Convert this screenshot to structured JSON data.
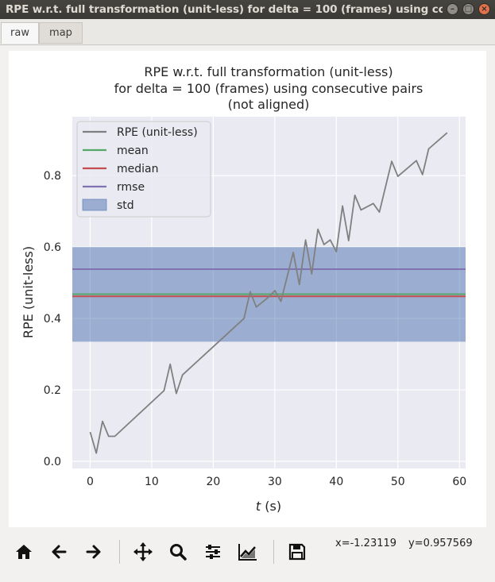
{
  "window": {
    "title": "RPE w.r.t. full transformation (unit-less) for delta = 100 (frames) using cons...",
    "buttons": [
      "minimize",
      "maximize",
      "close"
    ]
  },
  "tabs": [
    {
      "label": "raw",
      "active": true
    },
    {
      "label": "map",
      "active": false
    }
  ],
  "toolbar": {
    "buttons": [
      "home-icon",
      "back-arrow-icon",
      "forward-arrow-icon",
      "pan-icon",
      "zoom-icon",
      "configure-subplots-icon",
      "edit-axes-icon",
      "save-icon"
    ],
    "coord_x": "x=-1.23119",
    "coord_y": "y=0.957569"
  },
  "chart_data": {
    "type": "line",
    "title_lines": [
      "RPE w.r.t. full transformation (unit-less)",
      "for delta = 100 (frames) using consecutive pairs",
      "(not aligned)"
    ],
    "xlabel_italic": "t",
    "xlabel_rest": " (s)",
    "ylabel": "RPE (unit-less)",
    "xlim": [
      -2.9,
      61
    ],
    "ylim": [
      -0.02,
      0.965
    ],
    "xticks": [
      0,
      10,
      20,
      30,
      40,
      50,
      60
    ],
    "yticks": [
      0.0,
      0.2,
      0.4,
      0.6,
      0.8
    ],
    "ytick_labels": [
      "0.0",
      "0.2",
      "0.4",
      "0.6",
      "0.8"
    ],
    "grid": true,
    "legend_position": "upper-left",
    "colors": {
      "background": "#eaeaf2",
      "rpe": "#808080",
      "mean": "#55a868",
      "median": "#c44e52",
      "rmse": "#8172b2",
      "std": "#4c72b0"
    },
    "legend": [
      {
        "label": "RPE (unit-less)",
        "kind": "line",
        "color": "#808080"
      },
      {
        "label": "mean",
        "kind": "line",
        "color": "#55a868"
      },
      {
        "label": "median",
        "kind": "line",
        "color": "#c44e52"
      },
      {
        "label": "rmse",
        "kind": "line",
        "color": "#8172b2"
      },
      {
        "label": "std",
        "kind": "patch",
        "color": "#4c72b0"
      }
    ],
    "stats": {
      "mean": 0.468,
      "median": 0.462,
      "rmse": 0.538,
      "std_low": 0.335,
      "std_high": 0.6
    },
    "series": [
      {
        "name": "RPE (unit-less)",
        "x": [
          0,
          1,
          2,
          3,
          4,
          12,
          13,
          14,
          15,
          25,
          26,
          27,
          29,
          30,
          31,
          33,
          34,
          35,
          36,
          37,
          38,
          39,
          40,
          41,
          42,
          43,
          44,
          46,
          47,
          49,
          50,
          53,
          54,
          55,
          58
        ],
        "y": [
          0.082,
          0.023,
          0.112,
          0.07,
          0.07,
          0.198,
          0.272,
          0.19,
          0.242,
          0.4,
          0.475,
          0.432,
          0.46,
          0.478,
          0.448,
          0.585,
          0.495,
          0.62,
          0.525,
          0.65,
          0.607,
          0.62,
          0.587,
          0.715,
          0.618,
          0.745,
          0.704,
          0.722,
          0.698,
          0.84,
          0.798,
          0.842,
          0.803,
          0.875,
          0.92
        ]
      }
    ]
  }
}
